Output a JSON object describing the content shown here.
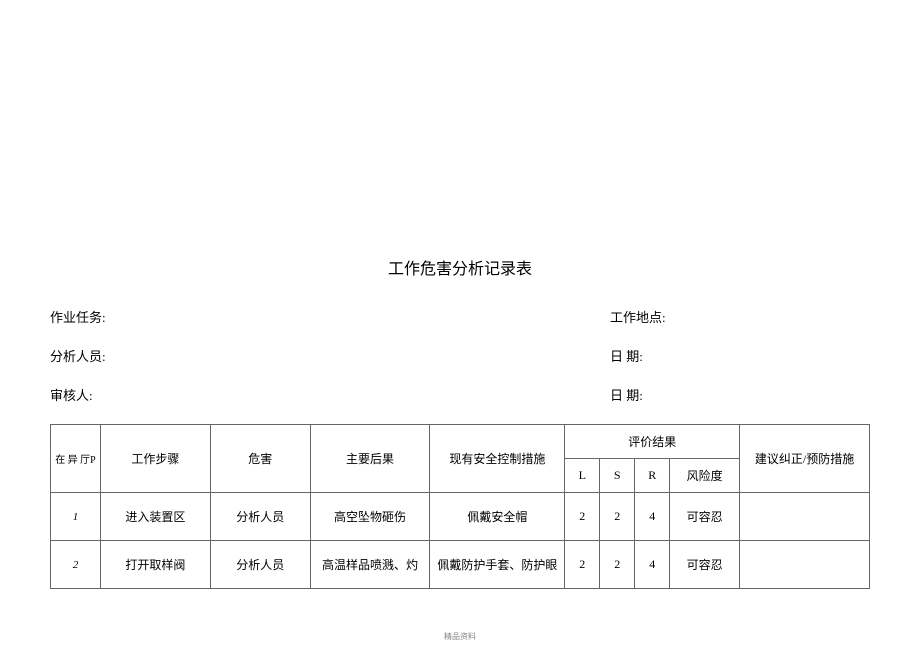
{
  "title": "工作危害分析记录表",
  "info": {
    "task_label": "作业任务:",
    "location_label": "工作地点:",
    "analyst_label": "分析人员:",
    "date1_label": "日 期:",
    "reviewer_label": "审核人:",
    "date2_label": "日 期:"
  },
  "headers": {
    "seq": "在 异 厅P",
    "step": "工作步骤",
    "hazard": "危害",
    "consequence": "主要后果",
    "measure": "现有安全控制措施",
    "eval": "评价结果",
    "l": "L",
    "s": "S",
    "r": "R",
    "risk": "风险度",
    "suggest": "建议纠正/预防措施"
  },
  "rows": [
    {
      "seq": "1",
      "step": "进入装置区",
      "hazard": "分析人员",
      "consequence": "高空坠物砸伤",
      "measure": "佩戴安全帽",
      "l": "2",
      "s": "2",
      "r": "4",
      "risk": "可容忍",
      "suggest": ""
    },
    {
      "seq": "2",
      "step": "打开取样阀",
      "hazard": "分析人员",
      "consequence": "高温样品喷溅、灼",
      "measure": "佩戴防护手套、防护眼",
      "l": "2",
      "s": "2",
      "r": "4",
      "risk": "可容忍",
      "suggest": ""
    }
  ],
  "footer": "精品资料",
  "style": {
    "background_color": "#ffffff",
    "border_color": "#666666",
    "text_color": "#000000",
    "title_fontsize": 16,
    "body_fontsize": 13,
    "table_fontsize": 12
  }
}
